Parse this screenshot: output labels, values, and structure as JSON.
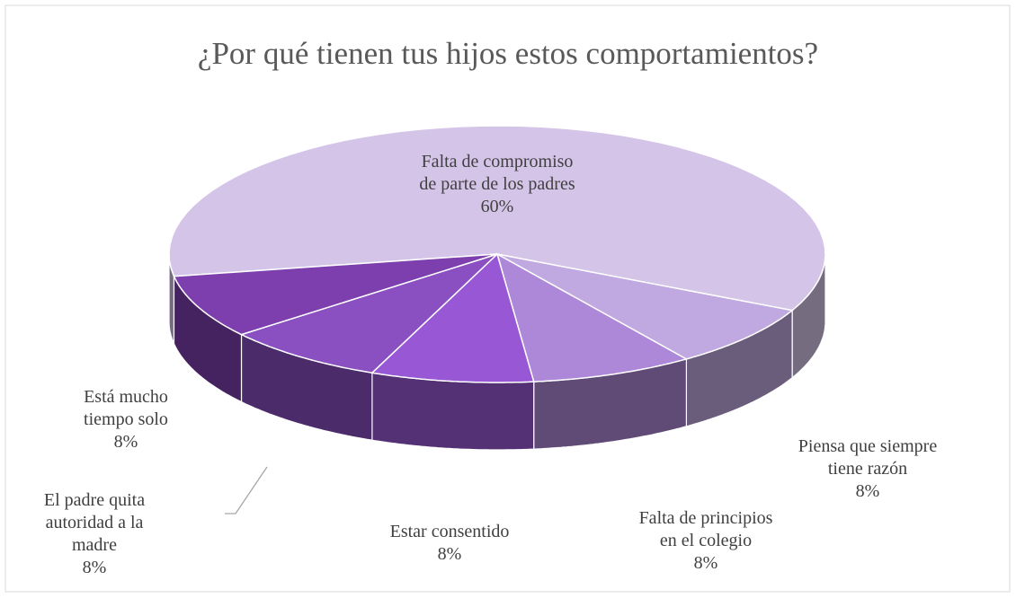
{
  "chart_data": {
    "type": "pie",
    "title": "¿Por qué tienen tus hijos estos comportamientos?",
    "categories": [
      "Falta de compromiso de parte de los padres",
      "Piensa que siempre tiene razón",
      "Falta de principios en el colegio",
      "Estar consentido",
      "El padre quita autoridad a la madre",
      "Está mucho tiempo solo"
    ],
    "values": [
      60,
      8,
      8,
      8,
      8,
      8
    ],
    "value_labels": [
      "60%",
      "8%",
      "8%",
      "8%",
      "8%",
      "8%"
    ],
    "colors": [
      "#d4c4e8",
      "#c0a8e0",
      "#ae88d8",
      "#9857d4",
      "#8a4fc0",
      "#7d3fae"
    ]
  }
}
